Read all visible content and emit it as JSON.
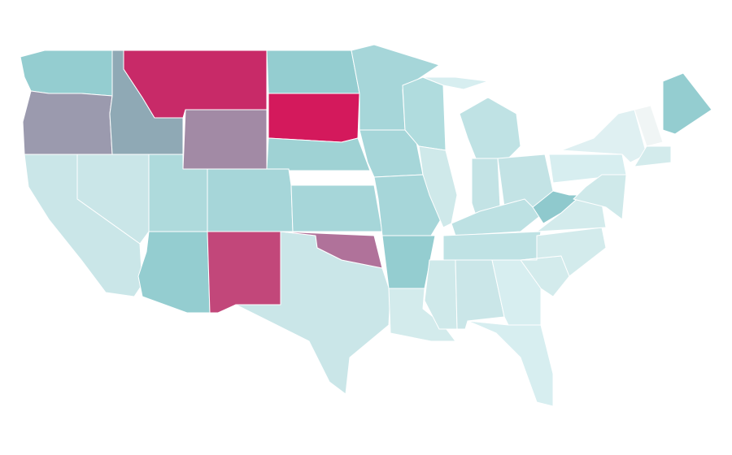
{
  "regions": [
    {
      "color": "#94cdd0"
    },
    {
      "color": "#9b9aae"
    },
    {
      "color": "#8fa9b5"
    },
    {
      "color": "#c82a68"
    },
    {
      "color": "#a28aa5"
    },
    {
      "color": "#94cdd0"
    },
    {
      "color": "#d4195c"
    },
    {
      "color": "#9fd2d4"
    },
    {
      "color": "#a6d6d9"
    },
    {
      "color": "#aedadc"
    },
    {
      "color": "#cae6e8"
    },
    {
      "color": "#cae6e8"
    },
    {
      "color": "#94cdd0"
    },
    {
      "color": "#c2477a"
    },
    {
      "color": "#cae6e8"
    },
    {
      "color": "#b0729a"
    },
    {
      "color": "#a6d6d9"
    },
    {
      "color": "#a6d6d9"
    },
    {
      "color": "#a6d6d9"
    },
    {
      "color": "#a6d6d9"
    },
    {
      "color": "#94cdd0"
    },
    {
      "color": "#d3ebec"
    },
    {
      "color": "#b0dcde"
    },
    {
      "color": "#cfe9ea"
    },
    {
      "color": "#bfe2e4"
    },
    {
      "color": "#c3e3e5"
    },
    {
      "color": "#c3e3e5"
    },
    {
      "color": "#bde1e3"
    },
    {
      "color": "#bfe2e4"
    },
    {
      "color": "#cfe9ea"
    },
    {
      "color": "#cae6e8"
    },
    {
      "color": "#d7eef0"
    },
    {
      "color": "#d7eef0"
    },
    {
      "color": "#d3ebec"
    },
    {
      "color": "#d3ebec"
    },
    {
      "color": "#d3ebec"
    },
    {
      "color": "#8fc9cd"
    },
    {
      "color": "#d7eef0"
    },
    {
      "color": "#dff0f2"
    },
    {
      "color": "#cfe9ea"
    },
    {
      "color": "#94cdd0"
    },
    {
      "color": "#d3ebec"
    },
    {
      "color": "#d7eef0"
    },
    {
      "color": "#f0f5f5"
    }
  ]
}
